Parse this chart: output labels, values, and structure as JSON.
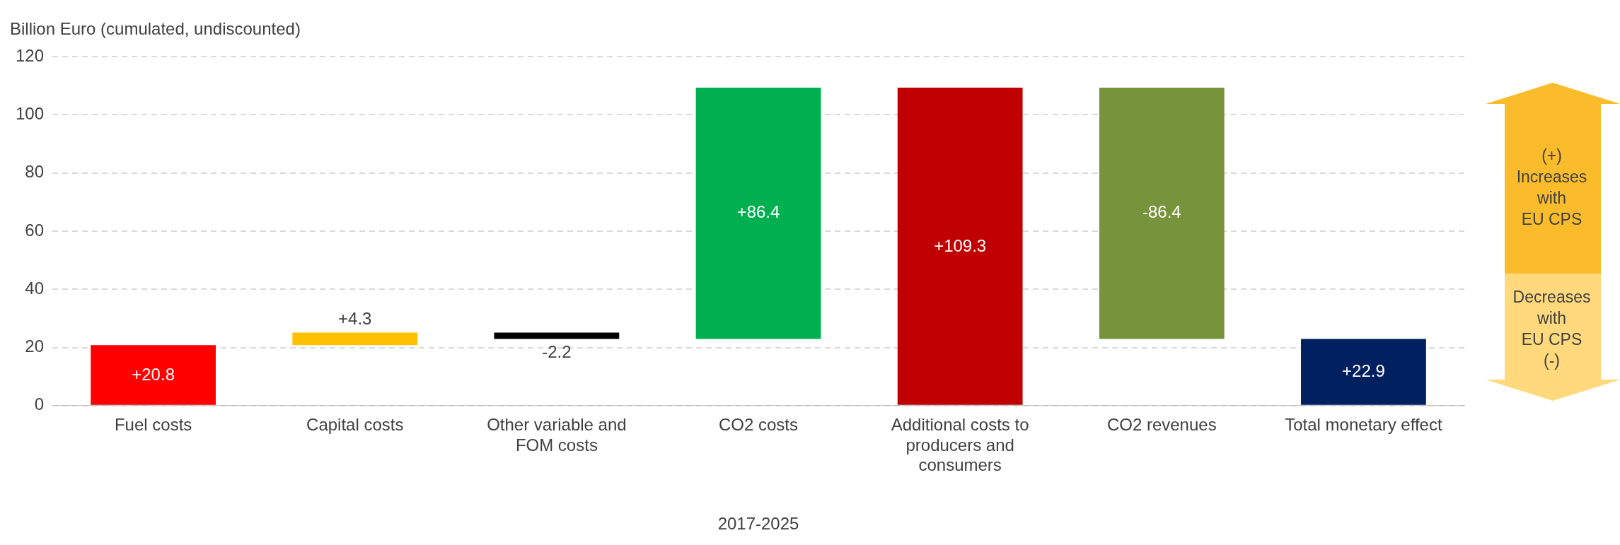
{
  "chart_data": {
    "type": "bar",
    "ylabel": "Billion Euro (cumulated, undiscounted)",
    "xlabel": "2017-2025",
    "categories": [
      "Fuel costs",
      "Capital costs",
      "Other variable and FOM costs",
      "CO2 costs",
      "Additional costs to producers and consumers",
      "CO2 revenues",
      "Total monetary effect"
    ],
    "values": [
      20.8,
      4.3,
      -2.2,
      86.4,
      109.3,
      -86.4,
      22.9
    ],
    "base": [
      0,
      20.8,
      25.1,
      22.9,
      0,
      109.3,
      0
    ],
    "colors": [
      "#ff0000",
      "#ffc000",
      "#000000",
      "#00b050",
      "#c00000",
      "#77933c",
      "#002060"
    ],
    "value_labels": [
      "+20.8",
      "+4.3",
      "-2.2",
      "+86.4",
      "+109.3",
      "-86.4",
      "+22.9"
    ],
    "ylim": [
      0,
      120
    ],
    "yticks": [
      0,
      20,
      40,
      60,
      80,
      100,
      120
    ],
    "grid": "y",
    "legend": false,
    "annotations": [
      "(+)\nIncreases\nwith\nEU CPS",
      "Decreases\nwith\nEU CPS\n(-)"
    ]
  }
}
